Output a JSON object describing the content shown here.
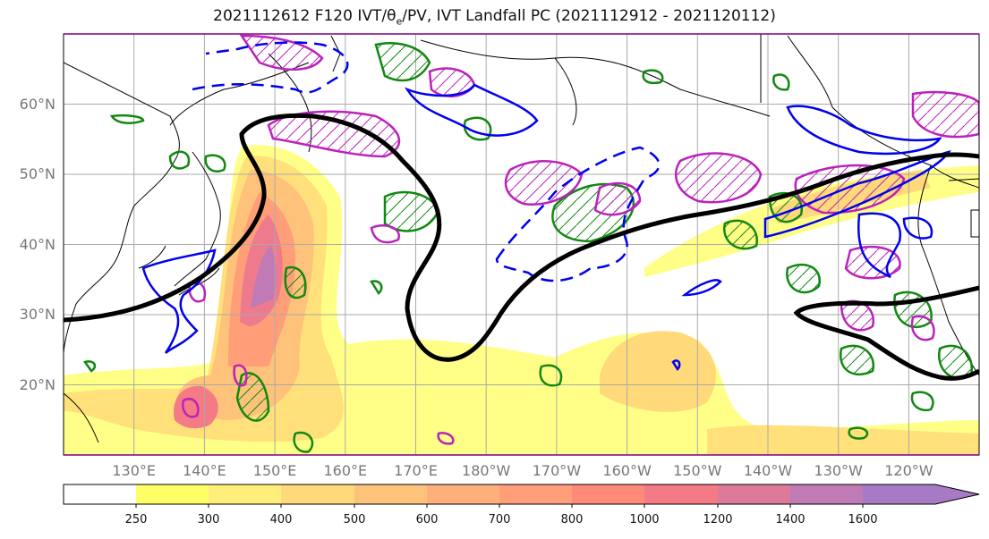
{
  "title": {
    "prefix": "2021112612 F120 IVT/θ",
    "theta_sub": "e",
    "suffix": "/PV, IVT Landfall PC (2021112912 - 2021120112)"
  },
  "map": {
    "lat_labels": [
      "60°N",
      "50°N",
      "40°N",
      "30°N",
      "20°N"
    ],
    "lon_labels": [
      "130°E",
      "140°E",
      "150°E",
      "160°E",
      "170°E",
      "180°W",
      "170°W",
      "160°W",
      "150°W",
      "140°W",
      "130°W",
      "120°W"
    ],
    "lat_range": [
      10,
      70
    ],
    "lon_range": [
      120,
      250
    ]
  },
  "colorbar": {
    "levels": [
      "250",
      "300",
      "400",
      "500",
      "600",
      "700",
      "800",
      "1000",
      "1200",
      "1400",
      "1600"
    ],
    "colors": [
      "#ffff66",
      "#ffef7a",
      "#ffd97a",
      "#ffc27a",
      "#ffb07a",
      "#ff9e78",
      "#ff8a7a",
      "#f47a86",
      "#dd7a9a",
      "#c07ab5",
      "#a77ac6"
    ]
  },
  "colors": {
    "ivt_contour": "#000000",
    "theta_e_contour": "#0000ee",
    "pv_green": "#118811",
    "pv_magenta": "#bb22bb"
  }
}
